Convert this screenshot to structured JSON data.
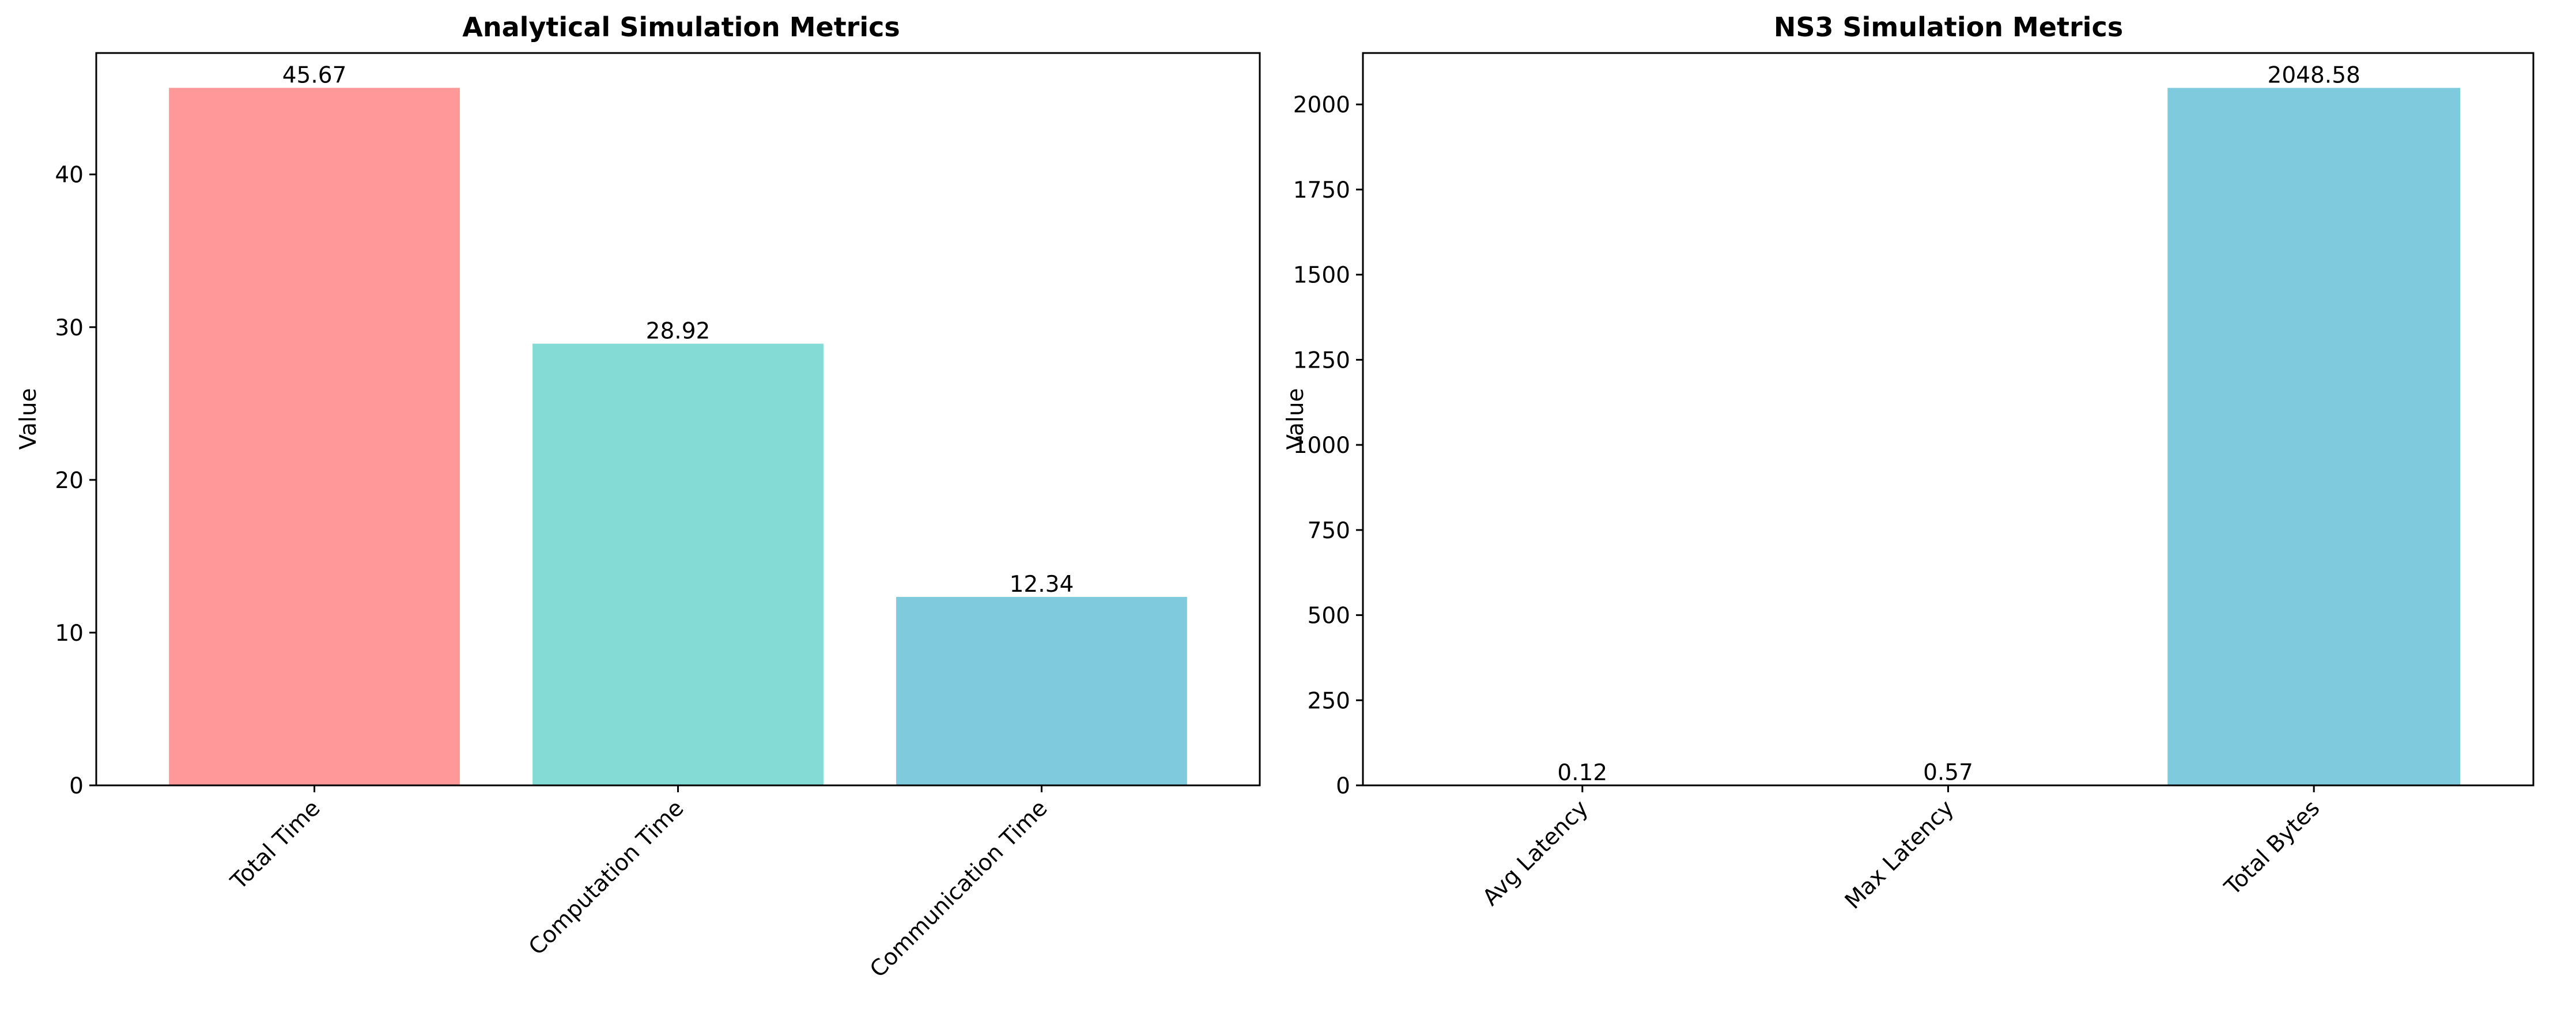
{
  "chart_data": [
    {
      "type": "bar",
      "title": "Analytical Simulation Metrics",
      "xlabel": "",
      "ylabel": "Value",
      "categories": [
        "Total Time",
        "Computation Time",
        "Communication Time"
      ],
      "values": [
        45.67,
        28.92,
        12.34
      ],
      "value_labels": [
        "45.67",
        "28.92",
        "12.34"
      ],
      "colors": [
        "#ff9999",
        "#84dbd5",
        "#7fcadd"
      ],
      "ylim": [
        0,
        47.95
      ],
      "yticks": [
        0,
        10,
        20,
        30,
        40
      ],
      "ytick_labels": [
        "0",
        "10",
        "20",
        "30",
        "40"
      ],
      "grid": false,
      "legend": false
    },
    {
      "type": "bar",
      "title": "NS3 Simulation Metrics",
      "xlabel": "",
      "ylabel": "Value",
      "categories": [
        "Avg Latency",
        "Max Latency",
        "Total Bytes"
      ],
      "values": [
        0.12,
        0.57,
        2048.58
      ],
      "value_labels": [
        "0.12",
        "0.57",
        "2048.58"
      ],
      "colors": [
        "#ff9999",
        "#84dbd5",
        "#7fcadd"
      ],
      "ylim": [
        0,
        2151
      ],
      "yticks": [
        0,
        250,
        500,
        750,
        1000,
        1250,
        1500,
        1750,
        2000
      ],
      "ytick_labels": [
        "0",
        "250",
        "500",
        "750",
        "1000",
        "1250",
        "1500",
        "1750",
        "2000"
      ],
      "grid": false,
      "legend": false
    }
  ]
}
